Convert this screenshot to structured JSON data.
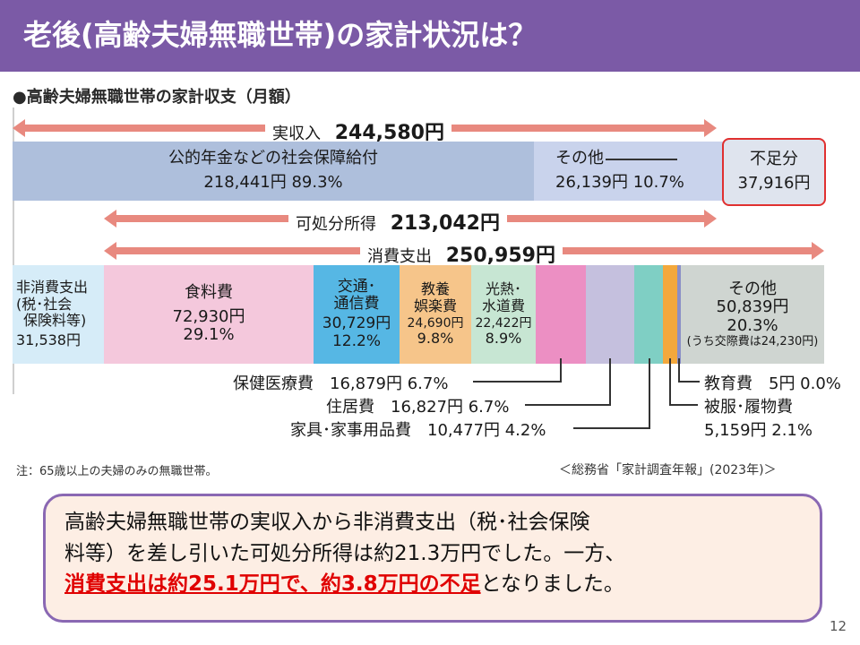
{
  "header": {
    "title": "老後(高齢夫婦無職世帯)の家計状況は？"
  },
  "figure": {
    "subtitle": "●高齢夫婦無職世帯の家計収支（月額）",
    "income_total": {
      "label": "実収入",
      "value": "244,580円"
    },
    "disposable": {
      "label": "可処分所得",
      "value": "213,042円"
    },
    "consumption": {
      "label": "消費支出",
      "value": "250,959円"
    },
    "income_segments": {
      "pension": {
        "label": "公的年金などの社会保障給付",
        "value": "218,441円 89.3%"
      },
      "other": {
        "label": "その他",
        "value": "26,139円 10.7%"
      },
      "shortfall": {
        "label": "不足分",
        "value": "37,916円"
      }
    },
    "expense_segments": {
      "nonconsumption": {
        "line1": "非消費支出",
        "line2": "(税･社会",
        "line3": "保険料等)",
        "value": "31,538円"
      },
      "food": {
        "label": "食料費",
        "value": "72,930円",
        "pct": "29.1%"
      },
      "transport": {
        "line1": "交通･",
        "line2": "通信費",
        "value": "30,729円",
        "pct": "12.2%"
      },
      "culture": {
        "line1": "教養",
        "line2": "娯楽費",
        "value": "24,690円",
        "pct": "9.8%"
      },
      "utilities": {
        "line1": "光熱･",
        "line2": "水道費",
        "value": "22,422円",
        "pct": "8.9%"
      },
      "other": {
        "label": "その他",
        "value": "50,839円",
        "pct": "20.3%",
        "note": "(うち交際費は24,230円)"
      }
    },
    "callouts": {
      "medical": "保健医療費　16,879円 6.7%",
      "housing": "住居費　16,827円 6.7%",
      "furniture": "家具･家事用品費　10,477円 4.2%",
      "education": "教育費　5円 0.0%",
      "clothing_1": "被服･履物費",
      "clothing_2": "5,159円 2.1%"
    },
    "note": "注：65歳以上の夫婦のみの無職世帯。",
    "source": "＜総務省「家計調査年報」(2023年)＞"
  },
  "summary": {
    "line1": "高齢夫婦無職世帯の実収入から非消費支出（税･社会保険",
    "line2": "料等）を差し引いた可処分所得は約21.3万円でした。一方、",
    "highlight": "消費支出は約25.1万円で、約3.8万円の不足",
    "tail": "となりました。"
  },
  "page_number": "12",
  "colors": {
    "title_bar": "#7b5aa6",
    "arrow": "#e8897f",
    "pension": "#aebfdc",
    "other_income": "#c9d3ec",
    "shortfall_border": "#e03030",
    "nonconsumption": "#d6ecf8",
    "food": "#f4c8dc",
    "transport": "#56b7e4",
    "culture": "#f6c58a",
    "utilities": "#c7e6d3",
    "medical": "#ec8fc3",
    "housing": "#c5c0de",
    "furniture": "#7fcfc4",
    "clothing": "#f3a83c",
    "education": "#8a8fc7",
    "other_expense": "#cfd5d1",
    "summary_bg": "#fdeee4",
    "summary_border": "#8a68b3",
    "highlight": "#e00000"
  }
}
